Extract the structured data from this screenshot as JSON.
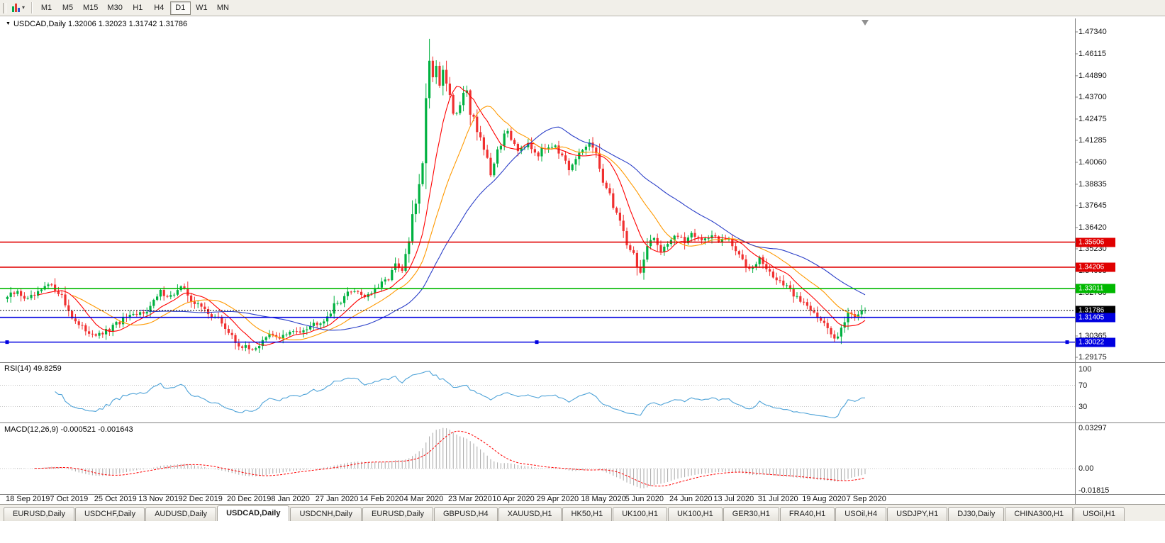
{
  "toolbar": {
    "timeframes": [
      {
        "label": "M1",
        "active": false
      },
      {
        "label": "M5",
        "active": false
      },
      {
        "label": "M15",
        "active": false
      },
      {
        "label": "M30",
        "active": false
      },
      {
        "label": "H1",
        "active": false
      },
      {
        "label": "H4",
        "active": false
      },
      {
        "label": "D1",
        "active": true
      },
      {
        "label": "W1",
        "active": false
      },
      {
        "label": "MN",
        "active": false
      }
    ]
  },
  "icons": {
    "caret_down": "▾",
    "header_marker": "▼"
  },
  "header": {
    "ohlc_line": "USDCAD,Daily 1.32006 1.32023 1.31742 1.31786"
  },
  "rsi_panel": {
    "label": "RSI(14) 49.8259",
    "axis_labels": [
      {
        "text": "100",
        "value": 100
      },
      {
        "text": "70",
        "value": 70
      },
      {
        "text": "30",
        "value": 30
      }
    ]
  },
  "macd_panel": {
    "label": "MACD(12,26,9) -0.000521 -0.001643",
    "axis_labels": [
      {
        "text": "0.03297",
        "value": 0.03297
      },
      {
        "text": "0.00",
        "value": 0
      },
      {
        "text": "-0.01815",
        "value": -0.01815
      }
    ]
  },
  "tabs": [
    {
      "label": "EURUSD,Daily",
      "active": false
    },
    {
      "label": "USDCHF,Daily",
      "active": false
    },
    {
      "label": "AUDUSD,Daily",
      "active": false
    },
    {
      "label": "USDCAD,Daily",
      "active": true
    },
    {
      "label": "USDCNH,Daily",
      "active": false
    },
    {
      "label": "EURUSD,Daily",
      "active": false
    },
    {
      "label": "GBPUSD,H4",
      "active": false
    },
    {
      "label": "XAUUSD,H1",
      "active": false
    },
    {
      "label": "HK50,H1",
      "active": false
    },
    {
      "label": "UK100,H1",
      "active": false
    },
    {
      "label": "UK100,H1",
      "active": false
    },
    {
      "label": "GER30,H1",
      "active": false
    },
    {
      "label": "FRA40,H1",
      "active": false
    },
    {
      "label": "USOil,H4",
      "active": false
    },
    {
      "label": "USDJPY,H1",
      "active": false
    },
    {
      "label": "DJ30,Daily",
      "active": false
    },
    {
      "label": "CHINA300,H1",
      "active": false
    },
    {
      "label": "USOil,H1",
      "active": false
    }
  ],
  "colors": {
    "bull": "#00b140",
    "bear": "#f03030",
    "ma_fast": "#ff0000",
    "ma_mid": "#ff9900",
    "ma_slow": "#2b3fc8",
    "rsi_line": "#4fa3d8",
    "rsi_level": "#c8c8c8",
    "macd_hist": "#a8a8a8",
    "macd_signal": "#ff0000",
    "separator": "#808080",
    "shift_marker": "#909090"
  },
  "chart_data": {
    "type": "candlestick",
    "symbol": "USDCAD",
    "timeframe": "Daily",
    "current_ohlc": {
      "open": 1.32006,
      "high": 1.32023,
      "low": 1.31742,
      "close": 1.31786
    },
    "candle_count": 253,
    "y_axis_ticks": [
      "1.47340",
      "1.46115",
      "1.44890",
      "1.43700",
      "1.42475",
      "1.41285",
      "1.40060",
      "1.38835",
      "1.37645",
      "1.36420",
      "1.35230",
      "1.34005",
      "1.32780",
      "1.31590",
      "1.30365",
      "1.29175"
    ],
    "x_axis_dates": [
      "18 Sep 2019",
      "7 Oct 2019",
      "25 Oct 2019",
      "13 Nov 2019",
      "2 Dec 2019",
      "20 Dec 2019",
      "8 Jan 2020",
      "27 Jan 2020",
      "14 Feb 2020",
      "4 Mar 2020",
      "23 Mar 2020",
      "10 Apr 2020",
      "29 Apr 2020",
      "18 May 2020",
      "5 Jun 2020",
      "24 Jun 2020",
      "13 Jul 2020",
      "31 Jul 2020",
      "19 Aug 2020",
      "7 Sep 2020"
    ],
    "close_keypoints": [
      [
        0,
        1.3255
      ],
      [
        3,
        1.328
      ],
      [
        6,
        1.324
      ],
      [
        9,
        1.327
      ],
      [
        12,
        1.332
      ],
      [
        15,
        1.329
      ],
      [
        18,
        1.318
      ],
      [
        21,
        1.309
      ],
      [
        24,
        1.306
      ],
      [
        27,
        1.304
      ],
      [
        30,
        1.307
      ],
      [
        34,
        1.313
      ],
      [
        38,
        1.315
      ],
      [
        42,
        1.32
      ],
      [
        45,
        1.328
      ],
      [
        48,
        1.326
      ],
      [
        51,
        1.3305
      ],
      [
        53,
        1.327
      ],
      [
        55,
        1.322
      ],
      [
        59,
        1.317
      ],
      [
        63,
        1.311
      ],
      [
        67,
        1.3
      ],
      [
        71,
        1.296
      ],
      [
        74,
        1.2985
      ],
      [
        77,
        1.304
      ],
      [
        80,
        1.303
      ],
      [
        82,
        1.3045
      ],
      [
        86,
        1.307
      ],
      [
        90,
        1.3105
      ],
      [
        93,
        1.313
      ],
      [
        96,
        1.32
      ],
      [
        99,
        1.326
      ],
      [
        102,
        1.3295
      ],
      [
        105,
        1.326
      ],
      [
        108,
        1.329
      ],
      [
        111,
        1.334
      ],
      [
        114,
        1.343
      ],
      [
        116,
        1.339
      ],
      [
        118,
        1.357
      ],
      [
        120,
        1.378
      ],
      [
        122,
        1.405
      ],
      [
        124,
        1.46
      ],
      [
        125,
        1.448
      ],
      [
        126,
        1.456
      ],
      [
        127,
        1.444
      ],
      [
        128,
        1.452
      ],
      [
        130,
        1.44
      ],
      [
        131,
        1.425
      ],
      [
        133,
        1.432
      ],
      [
        135,
        1.443
      ],
      [
        136,
        1.43
      ],
      [
        139,
        1.415
      ],
      [
        142,
        1.392
      ],
      [
        144,
        1.408
      ],
      [
        147,
        1.418
      ],
      [
        150,
        1.408
      ],
      [
        153,
        1.412
      ],
      [
        156,
        1.405
      ],
      [
        159,
        1.41
      ],
      [
        161,
        1.411
      ],
      [
        163,
        1.403
      ],
      [
        165,
        1.395
      ],
      [
        168,
        1.405
      ],
      [
        171,
        1.412
      ],
      [
        174,
        1.398
      ],
      [
        176,
        1.386
      ],
      [
        180,
        1.368
      ],
      [
        182,
        1.356
      ],
      [
        184,
        1.349
      ],
      [
        186,
        1.339
      ],
      [
        188,
        1.352
      ],
      [
        190,
        1.358
      ],
      [
        192,
        1.352
      ],
      [
        194,
        1.356
      ],
      [
        196,
        1.36
      ],
      [
        199,
        1.356
      ],
      [
        201,
        1.362
      ],
      [
        204,
        1.357
      ],
      [
        207,
        1.36
      ],
      [
        209,
        1.356
      ],
      [
        211,
        1.358
      ],
      [
        213,
        1.354
      ],
      [
        215,
        1.348
      ],
      [
        218,
        1.342
      ],
      [
        221,
        1.347
      ],
      [
        224,
        1.338
      ],
      [
        227,
        1.3345
      ],
      [
        229,
        1.33
      ],
      [
        231,
        1.327
      ],
      [
        234,
        1.322
      ],
      [
        237,
        1.318
      ],
      [
        239,
        1.312
      ],
      [
        241,
        1.307
      ],
      [
        243,
        1.302
      ],
      [
        245,
        1.31
      ],
      [
        247,
        1.316
      ],
      [
        249,
        1.315
      ],
      [
        251,
        1.3185
      ],
      [
        252,
        1.31786
      ]
    ],
    "horizontal_lines": [
      {
        "price": 1.35606,
        "label": "1.35606",
        "color": "#e00000",
        "style": "solid",
        "selected": false
      },
      {
        "price": 1.34206,
        "label": "1.34206",
        "color": "#e00000",
        "style": "solid",
        "selected": false
      },
      {
        "price": 1.33011,
        "label": "1.33011",
        "color": "#00b800",
        "style": "solid",
        "selected": false
      },
      {
        "price": 1.31786,
        "label": "1.31786",
        "color": "#000000",
        "style": "dotted",
        "selected": false
      },
      {
        "price": 1.31405,
        "label": "1.31405",
        "color": "#0000e0",
        "style": "solid",
        "selected": false
      },
      {
        "price": 1.30022,
        "label": "1.30022",
        "color": "#0000e0",
        "style": "solid",
        "selected": true
      }
    ],
    "moving_averages": [
      {
        "period": 10,
        "color": "#ff0000"
      },
      {
        "period": 20,
        "color": "#ff9900"
      },
      {
        "period": 40,
        "color": "#2b3fc8"
      }
    ],
    "indicators": {
      "rsi": {
        "period": 14,
        "current": 49.8259,
        "levels": [
          70,
          30
        ],
        "range": [
          0,
          100
        ]
      },
      "macd": {
        "fast": 12,
        "slow": 26,
        "signal_period": 9,
        "current_macd": -0.000521,
        "current_signal": -0.001643,
        "axis_range": [
          -0.01815,
          0.03297
        ]
      }
    }
  }
}
